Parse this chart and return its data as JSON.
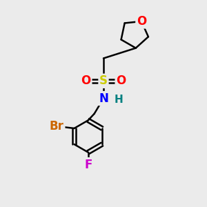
{
  "bg_color": "#ebebeb",
  "atom_colors": {
    "O": "#ff0000",
    "S": "#cccc00",
    "N": "#0000ff",
    "H": "#008080",
    "Br": "#cc6600",
    "F": "#cc00cc",
    "C": "#000000"
  },
  "bond_color": "#000000",
  "bond_width": 1.8,
  "font_size": 12
}
